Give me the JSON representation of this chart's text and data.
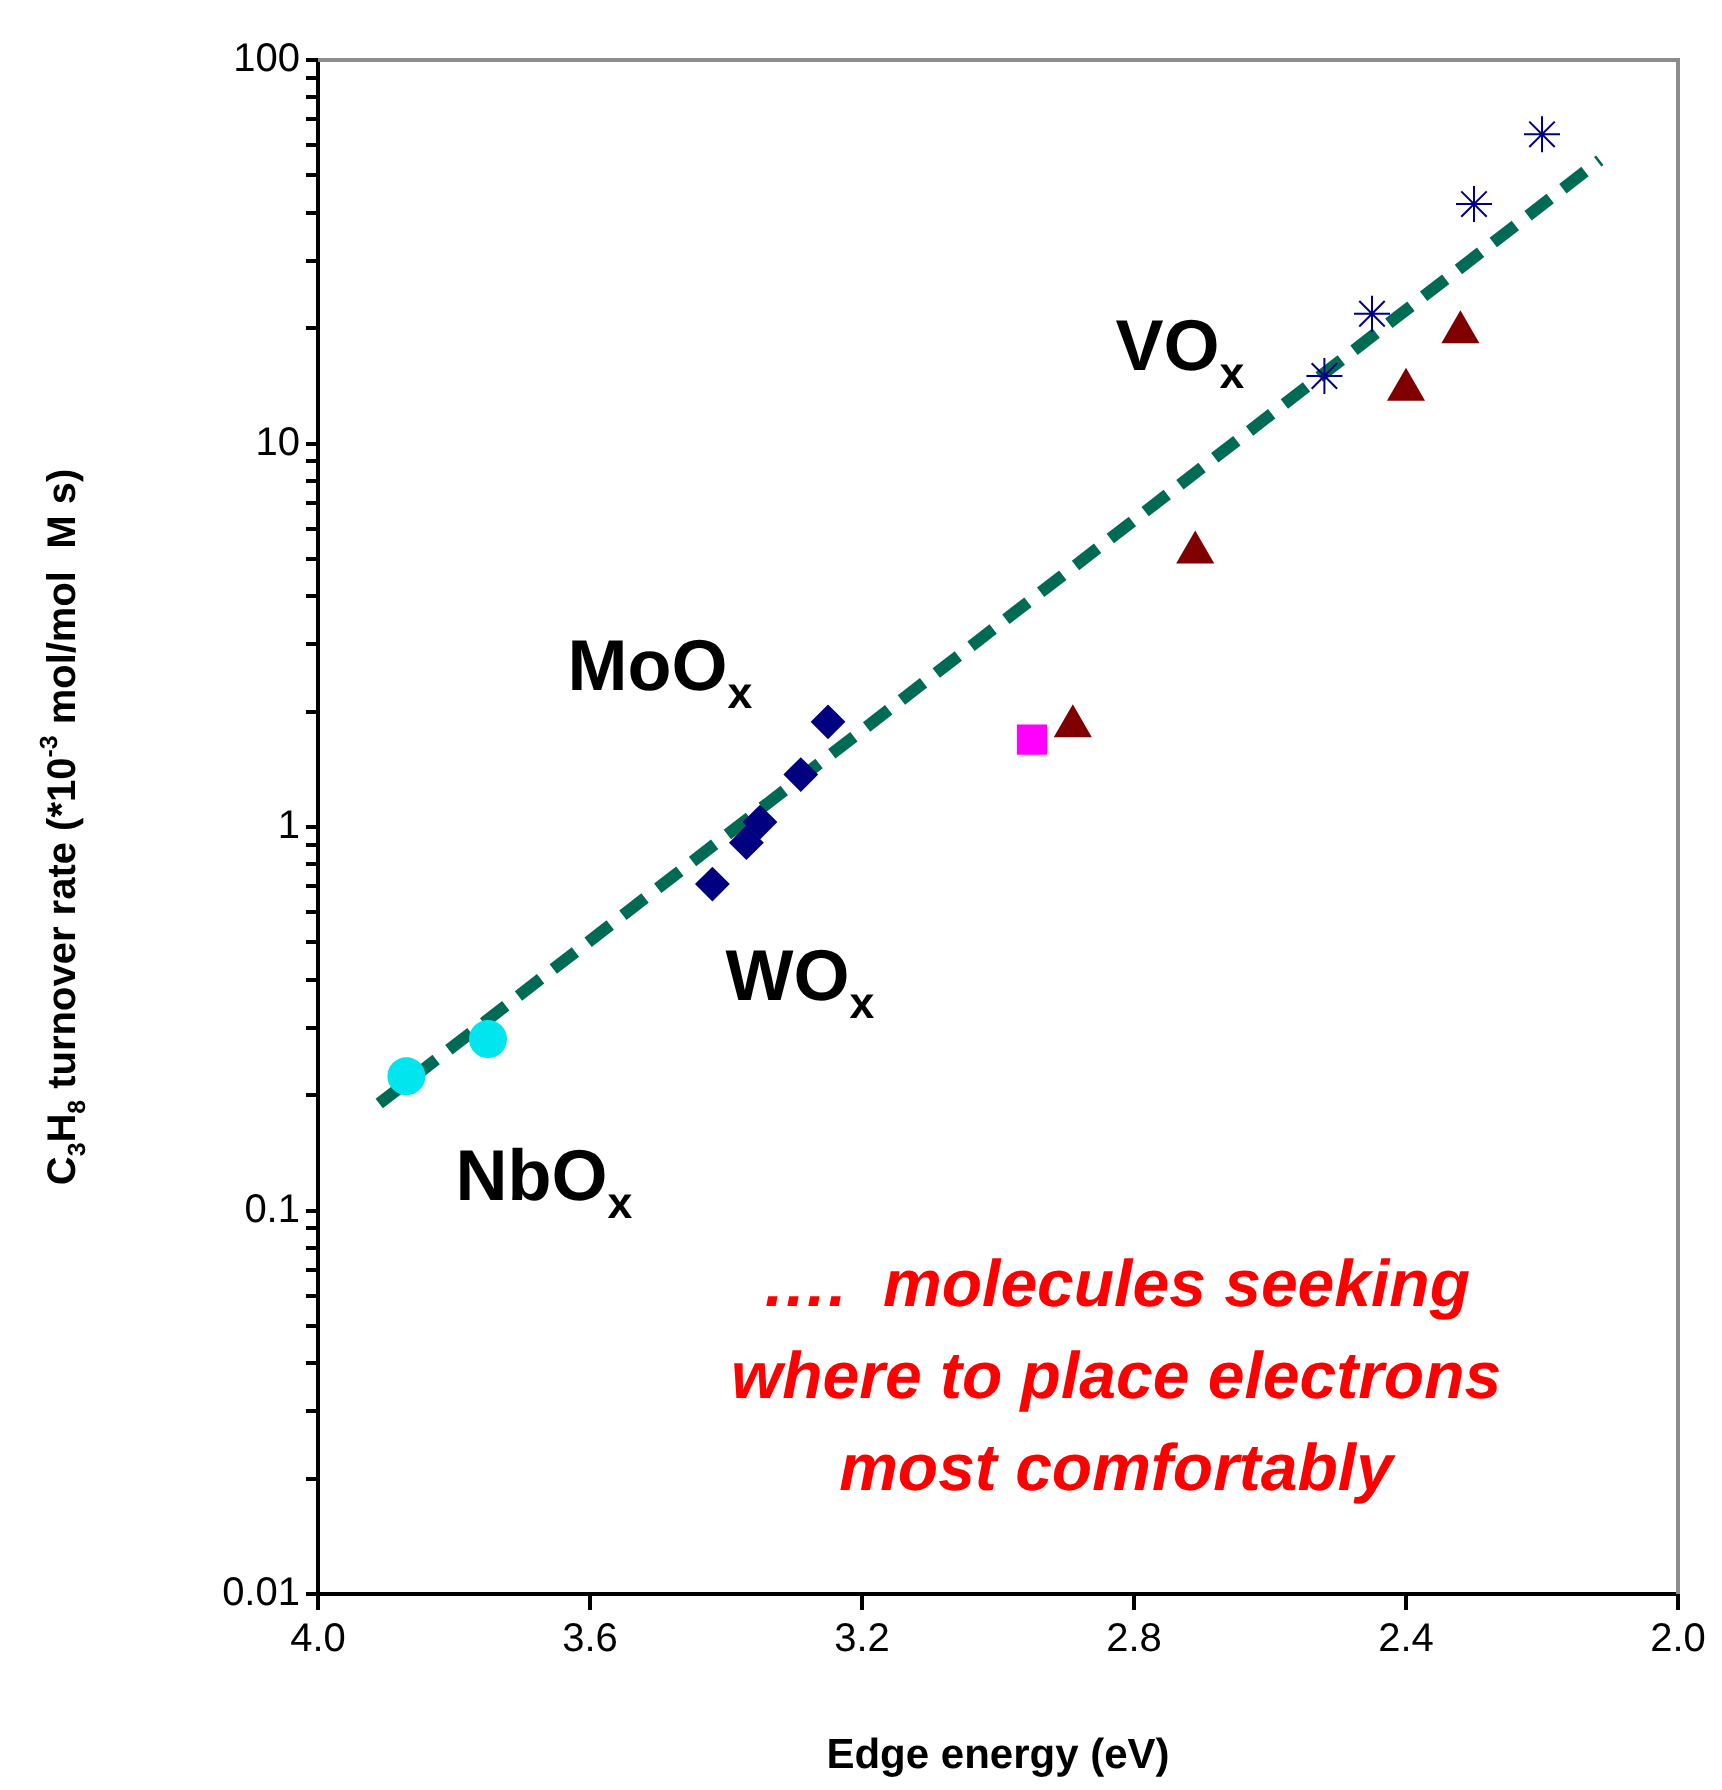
{
  "chart_data": {
    "type": "scatter",
    "xlabel": "Edge energy (eV)",
    "ylabel": "C$_{3}$H$_{8}$ turnover rate (*10$^{-3}$ mol/mol  M s)",
    "xlim": [
      4.0,
      2.0
    ],
    "xticks": [
      {
        "value": 4,
        "label": "4.0"
      },
      {
        "value": 3.6,
        "label": "3.6"
      },
      {
        "value": 3.2,
        "label": "3.2"
      },
      {
        "value": 2.8,
        "label": "2.8"
      },
      {
        "value": 2.4,
        "label": "2.4"
      },
      {
        "value": 2,
        "label": "2.0"
      }
    ],
    "ylim": [
      0.01,
      100
    ],
    "log": "y",
    "grid": false,
    "yticks": [
      0.01,
      {
        "value": 0.02,
        "label": null
      },
      {
        "value": 0.03,
        "label": null
      },
      {
        "value": 0.04,
        "label": null
      },
      {
        "value": 0.05,
        "label": null
      },
      {
        "value": 0.06,
        "label": null
      },
      {
        "value": 0.07,
        "label": null
      },
      {
        "value": 0.08,
        "label": null
      },
      {
        "value": 0.09,
        "label": null
      },
      0.1,
      {
        "value": 0.2,
        "label": null
      },
      {
        "value": 0.3,
        "label": null
      },
      {
        "value": 0.4,
        "label": null
      },
      {
        "value": 0.5,
        "label": null
      },
      {
        "value": 0.6,
        "label": null
      },
      {
        "value": 0.7,
        "label": null
      },
      {
        "value": 0.8,
        "label": null
      },
      {
        "value": 0.9,
        "label": null
      },
      1,
      {
        "value": 2,
        "label": null
      },
      {
        "value": 3,
        "label": null
      },
      {
        "value": 4,
        "label": null
      },
      {
        "value": 5,
        "label": null
      },
      {
        "value": 6,
        "label": null
      },
      {
        "value": 7,
        "label": null
      },
      {
        "value": 8,
        "label": null
      },
      {
        "value": 9,
        "label": null
      },
      10,
      {
        "value": 20,
        "label": null
      },
      {
        "value": 30,
        "label": null
      },
      {
        "value": 40,
        "label": null
      },
      {
        "value": 50,
        "label": null
      },
      {
        "value": 60,
        "label": null
      },
      {
        "value": 70,
        "label": null
      },
      {
        "value": 80,
        "label": null
      },
      {
        "value": 90,
        "label": null
      },
      100
    ],
    "series": [
      {
        "type": "line",
        "color": "#006b54",
        "line_style": "dashed",
        "marker": "none",
        "x": [
          3.91,
          2.115
        ],
        "values": [
          0.19,
          54.8
        ]
      },
      {
        "color": "#00e5ee",
        "marker": "circle",
        "x": [
          3.87,
          3.75
        ],
        "values": [
          0.224,
          0.28
        ]
      },
      {
        "color": "#000080",
        "marker": "diamond",
        "x": [
          3.42,
          3.37,
          3.35,
          3.29,
          3.25
        ],
        "values": [
          0.71,
          0.91,
          1.03,
          1.37,
          1.88
        ]
      },
      {
        "color": "#ff00ff",
        "marker": "square",
        "x": [
          2.95
        ],
        "values": [
          1.69
        ]
      },
      {
        "color": "#800000",
        "marker": "triangle",
        "x": [
          2.89,
          2.71,
          2.4,
          2.32
        ],
        "values": [
          1.83,
          5.2,
          13.8,
          19.5
        ]
      },
      {
        "color": "#000080",
        "marker": "cross",
        "x": [
          2.52,
          2.45,
          2.3,
          2.2
        ],
        "values": [
          15.0,
          21.8,
          42.1,
          64
        ]
      }
    ],
    "annotations": [
      "MoO$_{x}$",
      "VO$_{x}$",
      "WO$_{x}$",
      "NbO$_{x}$",
      "….  molecules seeking\nwhere to place electrons\nmost comfortably"
    ]
  }
}
